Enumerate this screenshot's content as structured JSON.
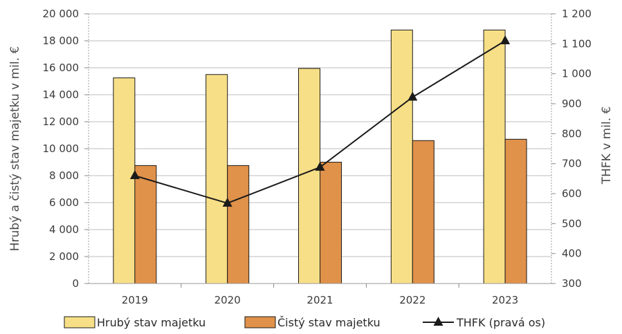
{
  "chart_data": {
    "type": "bar",
    "categories": [
      "2019",
      "2020",
      "2021",
      "2022",
      "2023"
    ],
    "series": [
      {
        "name": "Hrubý stav majetku",
        "type": "bar",
        "axis": "left",
        "color": "#F7DF87",
        "values": [
          15250,
          15500,
          15950,
          18800,
          18800
        ]
      },
      {
        "name": "Čistý stav majetku",
        "type": "bar",
        "axis": "left",
        "color": "#E0914A",
        "values": [
          8750,
          8750,
          9000,
          10600,
          10700
        ]
      },
      {
        "name": "THFK (pravá os)",
        "type": "line",
        "axis": "right",
        "color": "#1a1a1a",
        "marker": "triangle",
        "values": [
          660,
          568,
          688,
          922,
          1110
        ]
      }
    ],
    "ylabel": "Hrubý a čistý stav majetku v mil. €",
    "y2label": "THFK v mil. €",
    "ylim": [
      0,
      20000
    ],
    "y2lim": [
      300,
      1200
    ],
    "yticks": [
      0,
      2000,
      4000,
      6000,
      8000,
      10000,
      12000,
      14000,
      16000,
      18000,
      20000
    ],
    "yticks_labels": [
      "0",
      "2 000",
      "4 000",
      "6 000",
      "8 000",
      "10 000",
      "12 000",
      "14 000",
      "16 000",
      "18 000",
      "20 000"
    ],
    "y2ticks": [
      300,
      400,
      500,
      600,
      700,
      800,
      900,
      1000,
      1100,
      1200
    ],
    "y2ticks_labels": [
      "300",
      "400",
      "500",
      "600",
      "700",
      "800",
      "900",
      "1 000",
      "1 100",
      "1 200"
    ],
    "grid": true,
    "legend_position": "bottom"
  }
}
